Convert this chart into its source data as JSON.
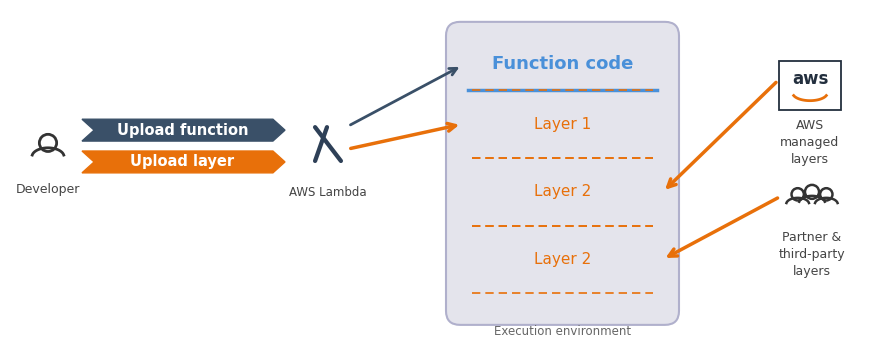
{
  "bg_color": "#ffffff",
  "arrow_blue_color": "#3a5068",
  "arrow_orange_color": "#e8700a",
  "func_code_color": "#4a90d9",
  "layer_text_color": "#e8700a",
  "box_bg": "#e4e4ec",
  "box_border": "#b0b0cc",
  "separator_blue": "#4a90d9",
  "dashed_orange": "#e8700a",
  "icon_color": "#333333",
  "label_color": "#444444",
  "arrow1_label": "Upload function",
  "arrow2_label": "Upload layer",
  "lambda_label": "AWS Lambda",
  "func_code_label": "Function code",
  "layer1_label": "Layer 1",
  "layer2_label": "Layer 2",
  "layer3_label": "Layer 2",
  "exec_env_label": "Execution environment",
  "developer_label": "Developer",
  "aws_managed_label": "AWS\nmanaged\nlayers",
  "partner_label": "Partner &\nthird-party\nlayers",
  "fig_w": 8.95,
  "fig_h": 3.41,
  "dpi": 100
}
